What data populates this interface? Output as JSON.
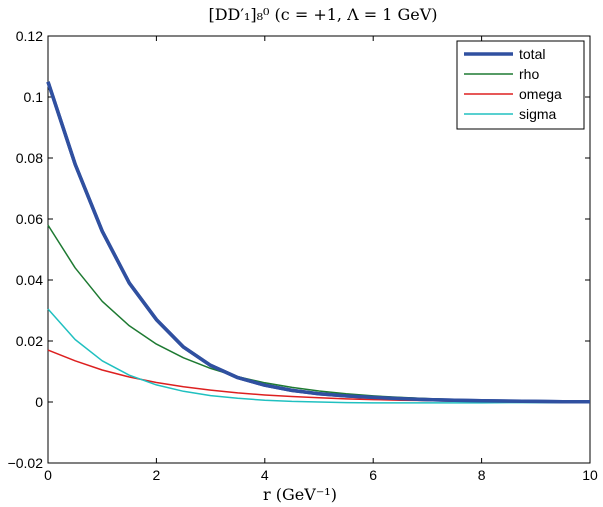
{
  "chart_data": {
    "type": "line",
    "title": "[DD′₁]₈⁰ (c = +1, Λ = 1 GeV)",
    "xlabel": "r (GeV⁻¹)",
    "ylabel": "",
    "xlim": [
      0,
      10
    ],
    "ylim": [
      -0.02,
      0.12
    ],
    "xticks": [
      0,
      2,
      4,
      6,
      8,
      10
    ],
    "yticks": [
      -0.02,
      0,
      0.02,
      0.04,
      0.06,
      0.08,
      0.1,
      0.12
    ],
    "xtick_labels": [
      "0",
      "2",
      "4",
      "6",
      "8",
      "10"
    ],
    "ytick_labels": [
      "−0.02",
      "0",
      "0.02",
      "0.04",
      "0.06",
      "0.08",
      "0.1",
      "0.12"
    ],
    "grid": false,
    "legend_position": "top-right",
    "x": [
      0,
      0.5,
      1,
      1.5,
      2,
      2.5,
      3,
      3.5,
      4,
      4.5,
      5,
      5.5,
      6,
      6.5,
      7,
      7.5,
      8,
      8.5,
      9,
      9.5,
      10
    ],
    "series": [
      {
        "name": "total",
        "color": "#3050a0",
        "width": 3.5,
        "values": [
          0.105,
          0.078,
          0.056,
          0.039,
          0.027,
          0.018,
          0.012,
          0.008,
          0.0055,
          0.0038,
          0.0027,
          0.002,
          0.0015,
          0.0011,
          0.0008,
          0.0006,
          0.0004,
          0.0003,
          0.0002,
          0.0001,
          0.0001
        ]
      },
      {
        "name": "rho",
        "color": "#1e7a32",
        "width": 1.5,
        "values": [
          0.058,
          0.044,
          0.033,
          0.025,
          0.019,
          0.0145,
          0.011,
          0.0083,
          0.0063,
          0.0048,
          0.0036,
          0.0027,
          0.002,
          0.0015,
          0.0011,
          0.0008,
          0.0006,
          0.0004,
          0.0003,
          0.0002,
          0.0001
        ]
      },
      {
        "name": "omega",
        "color": "#dd2020",
        "width": 1.5,
        "values": [
          0.017,
          0.0135,
          0.0105,
          0.0082,
          0.0064,
          0.005,
          0.0039,
          0.003,
          0.0023,
          0.0018,
          0.0014,
          0.001,
          0.0008,
          0.0006,
          0.0005,
          0.0003,
          0.0002,
          0.0002,
          0.0001,
          0.0001,
          0.0
        ]
      },
      {
        "name": "sigma",
        "color": "#20c0c0",
        "width": 1.5,
        "values": [
          0.0305,
          0.0205,
          0.0135,
          0.0088,
          0.0056,
          0.0035,
          0.0021,
          0.0012,
          0.0006,
          0.0002,
          0.0,
          -0.0002,
          -0.0003,
          -0.0003,
          -0.0003,
          -0.0003,
          -0.0003,
          -0.0002,
          -0.0002,
          -0.0002,
          -0.0002
        ]
      }
    ]
  }
}
